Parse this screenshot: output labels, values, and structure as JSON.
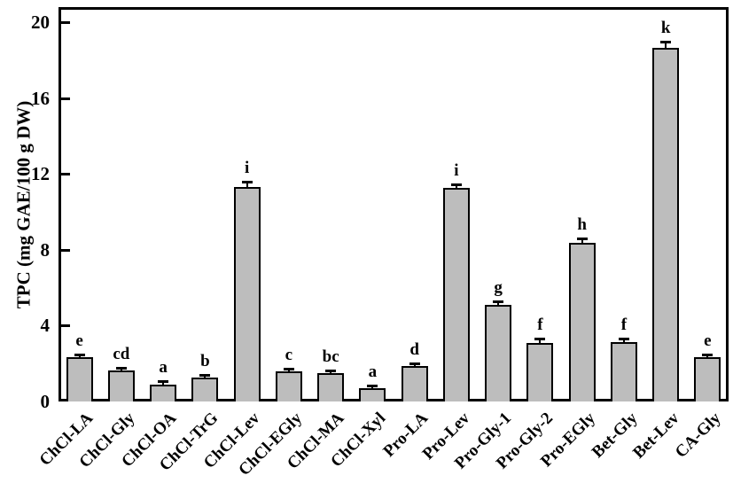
{
  "chart_data": {
    "type": "bar",
    "title": "",
    "xlabel": "",
    "ylabel": "TPC (mg GAE/100 g DW)",
    "ylim": [
      0,
      20.8
    ],
    "yticks": [
      0,
      4,
      8,
      12,
      16,
      20
    ],
    "grid": false,
    "legend": "none",
    "bar_fill_color": "#bdbdbd",
    "bar_border_color": "#000000",
    "axis_color": "#000000",
    "categories": [
      "ChCl-LA",
      "ChCl-Gly",
      "ChCl-OA",
      "ChCl-TrG",
      "ChCl-Lev",
      "ChCl-EGly",
      "ChCl-MA",
      "ChCl-Xyl",
      "Pro-LA",
      "Pro-Lev",
      "Pro-Gly-1",
      "Pro-Gly-2",
      "Pro-EGly",
      "Bet-Gly",
      "Bet-Lev",
      "CA-Gly"
    ],
    "values": [
      2.35,
      1.65,
      0.9,
      1.25,
      11.3,
      1.6,
      1.5,
      0.7,
      1.85,
      11.25,
      5.1,
      3.1,
      8.35,
      3.15,
      18.65,
      2.35
    ],
    "errors": [
      0.1,
      0.1,
      0.12,
      0.1,
      0.25,
      0.1,
      0.1,
      0.08,
      0.1,
      0.15,
      0.15,
      0.18,
      0.2,
      0.12,
      0.3,
      0.1
    ],
    "sig_letters": [
      "e",
      "cd",
      "a",
      "b",
      "i",
      "c",
      "bc",
      "a",
      "d",
      "i",
      "g",
      "f",
      "h",
      "f",
      "k",
      "e"
    ]
  }
}
